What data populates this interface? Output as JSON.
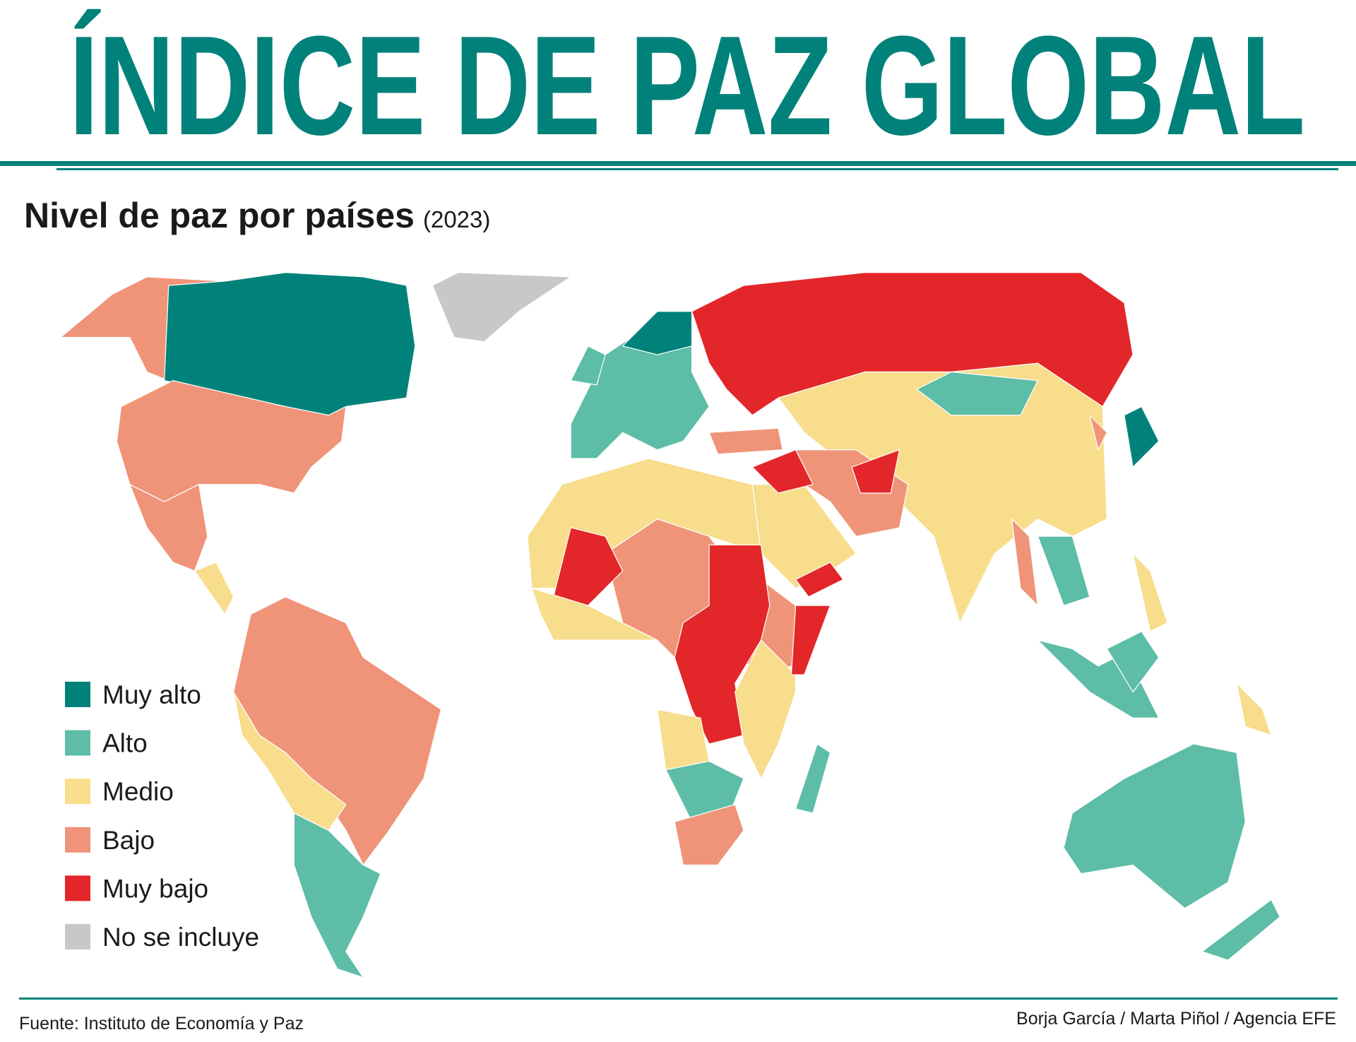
{
  "header": {
    "title": "ÍNDICE DE PAZ GLOBAL"
  },
  "subtitle": {
    "text": "Nivel de paz por países",
    "year": "(2023)"
  },
  "legend": {
    "items": [
      {
        "label": "Muy alto",
        "color": "#00827a"
      },
      {
        "label": "Alto",
        "color": "#5dbda7"
      },
      {
        "label": "Medio",
        "color": "#f7dd8c"
      },
      {
        "label": "Bajo",
        "color": "#ef9479"
      },
      {
        "label": "Muy bajo",
        "color": "#e3262a"
      },
      {
        "label": "No se incluye",
        "color": "#c8c8c8"
      }
    ]
  },
  "footer": {
    "source": "Fuente: Instituto de Economía y Paz",
    "credits": "Borja García / Marta Piñol / Agencia EFE"
  },
  "theme_color": "#00827a"
}
